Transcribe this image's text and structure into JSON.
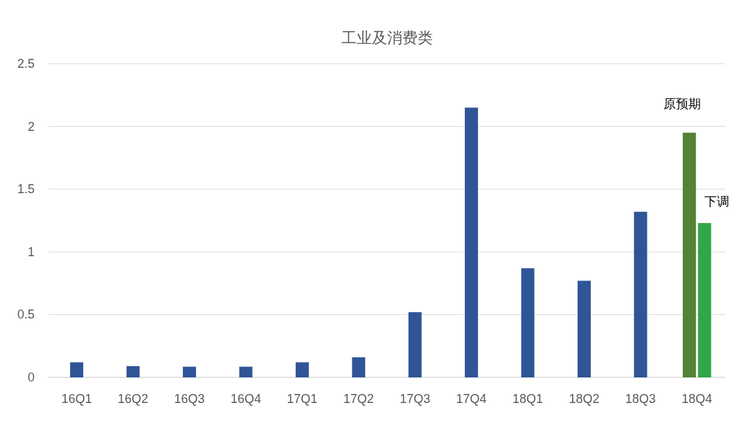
{
  "chart_data": {
    "type": "bar",
    "title": "工业及消费类",
    "categories": [
      "16Q1",
      "16Q2",
      "16Q3",
      "16Q4",
      "17Q1",
      "17Q2",
      "17Q3",
      "17Q4",
      "18Q1",
      "18Q2",
      "18Q3",
      "18Q4"
    ],
    "series": [
      {
        "color": "#2f5597",
        "values": [
          0.12,
          0.09,
          0.085,
          0.085,
          0.12,
          0.16,
          0.52,
          2.15,
          0.87,
          0.77,
          1.32,
          null
        ]
      },
      {
        "name": "原预期",
        "color": "#548235",
        "values": [
          null,
          null,
          null,
          null,
          null,
          null,
          null,
          null,
          null,
          null,
          null,
          1.95
        ]
      },
      {
        "name": "下调",
        "color": "#2ea84a",
        "values": [
          null,
          null,
          null,
          null,
          null,
          null,
          null,
          null,
          null,
          null,
          null,
          1.23
        ]
      }
    ],
    "ylim": [
      0,
      2.5
    ],
    "yticks": [
      0,
      0.5,
      1,
      1.5,
      2,
      2.5
    ],
    "grid": "y"
  }
}
